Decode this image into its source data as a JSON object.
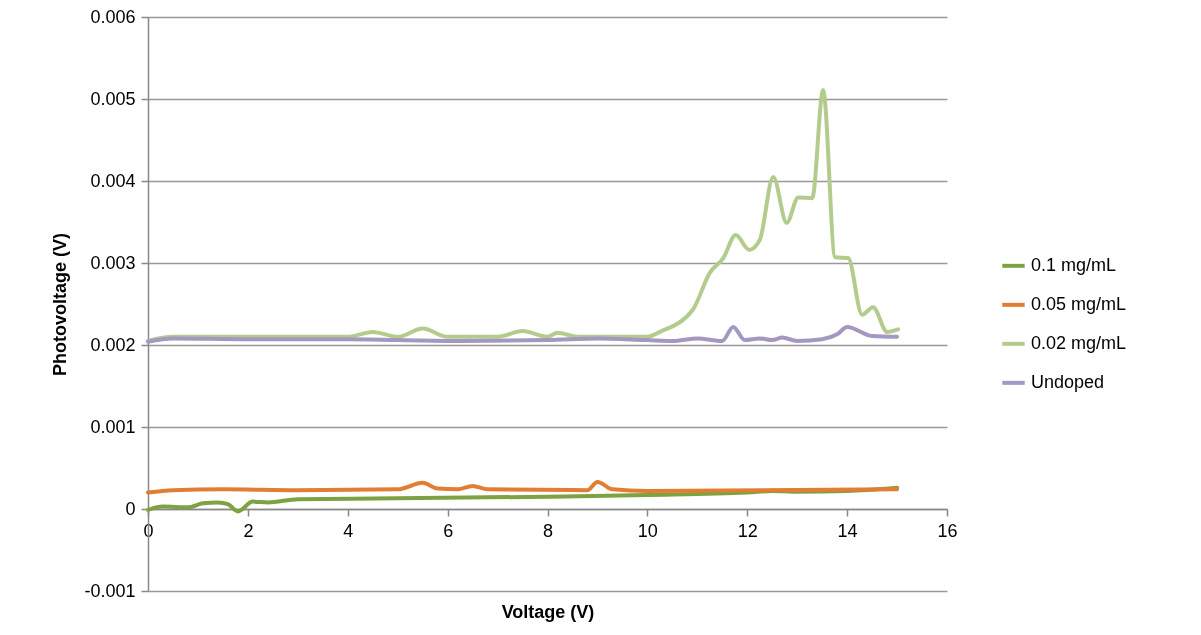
{
  "chart_data": {
    "type": "line",
    "xlabel": "Voltage (V)",
    "ylabel": "Photovoltage (V)",
    "xlim": [
      0,
      16
    ],
    "xticks": [
      0,
      2,
      4,
      6,
      8,
      10,
      12,
      14,
      16
    ],
    "ylim": [
      -0.001,
      0.006
    ],
    "yticks": [
      -0.001,
      0,
      0.001,
      0.002,
      0.003,
      0.004,
      0.005,
      0.006
    ],
    "grid": "y",
    "legend": "right",
    "marker": "none",
    "line_style": "solid",
    "series": [
      {
        "name": "0.1 mg/mL",
        "color": "#7ea142",
        "x": [
          0,
          0.3,
          0.8,
          1.1,
          1.4,
          1.6,
          1.8,
          2.1,
          2.4,
          3,
          5,
          8,
          10,
          12,
          12.5,
          13,
          14,
          15
        ],
        "values": [
          -1e-05,
          3e-05,
          2e-05,
          7e-05,
          8e-05,
          6e-05,
          -3e-05,
          9e-05,
          8e-05,
          0.00012,
          0.00013,
          0.00015,
          0.00017,
          0.0002,
          0.00022,
          0.00021,
          0.00022,
          0.00026
        ]
      },
      {
        "name": "0.05 mg/mL",
        "color": "#e27d34",
        "x": [
          0,
          0.5,
          1.5,
          3,
          5,
          5.5,
          5.8,
          6.2,
          6.5,
          6.8,
          8.8,
          9,
          9.3,
          10,
          15
        ],
        "values": [
          0.0002,
          0.00023,
          0.00024,
          0.00023,
          0.00024,
          0.00032,
          0.00025,
          0.00024,
          0.00028,
          0.00024,
          0.00023,
          0.00033,
          0.00024,
          0.00022,
          0.00024
        ]
      },
      {
        "name": "0.02 mg/mL",
        "color": "#b3cc8e",
        "x": [
          0,
          0.5,
          2,
          4,
          4.5,
          5,
          5.5,
          6,
          7,
          7.5,
          8,
          8.2,
          8.6,
          9.5,
          10,
          10.25,
          10.91,
          11.25,
          11.52,
          11.77,
          12.04,
          12.25,
          12.52,
          12.79,
          13.02,
          13.3,
          13.52,
          13.76,
          14.02,
          14.3,
          14.52,
          14.8,
          15.02
        ],
        "values": [
          0.00205,
          0.0021,
          0.0021,
          0.0021,
          0.00216,
          0.0021,
          0.0022,
          0.0021,
          0.0021,
          0.00217,
          0.0021,
          0.00215,
          0.0021,
          0.0021,
          0.0021,
          0.00216,
          0.00243,
          0.00288,
          0.00306,
          0.00334,
          0.00316,
          0.00328,
          0.00405,
          0.00349,
          0.0038,
          0.00379,
          0.00511,
          0.00307,
          0.00306,
          0.00237,
          0.00246,
          0.00216,
          0.00219
        ]
      },
      {
        "name": "Undoped",
        "color": "#a497c1",
        "x": [
          0,
          0.5,
          2,
          4,
          6,
          8,
          9,
          10,
          10.5,
          11,
          11.5,
          11.72,
          11.95,
          12.25,
          12.5,
          12.7,
          13,
          13.5,
          13.8,
          14,
          14.5,
          15
        ],
        "values": [
          0.00204,
          0.00208,
          0.00207,
          0.00207,
          0.00205,
          0.00206,
          0.00208,
          0.00206,
          0.00205,
          0.00208,
          0.00205,
          0.00222,
          0.00206,
          0.00208,
          0.00206,
          0.00209,
          0.00205,
          0.00207,
          0.00213,
          0.00222,
          0.00211,
          0.0021
        ]
      }
    ]
  }
}
